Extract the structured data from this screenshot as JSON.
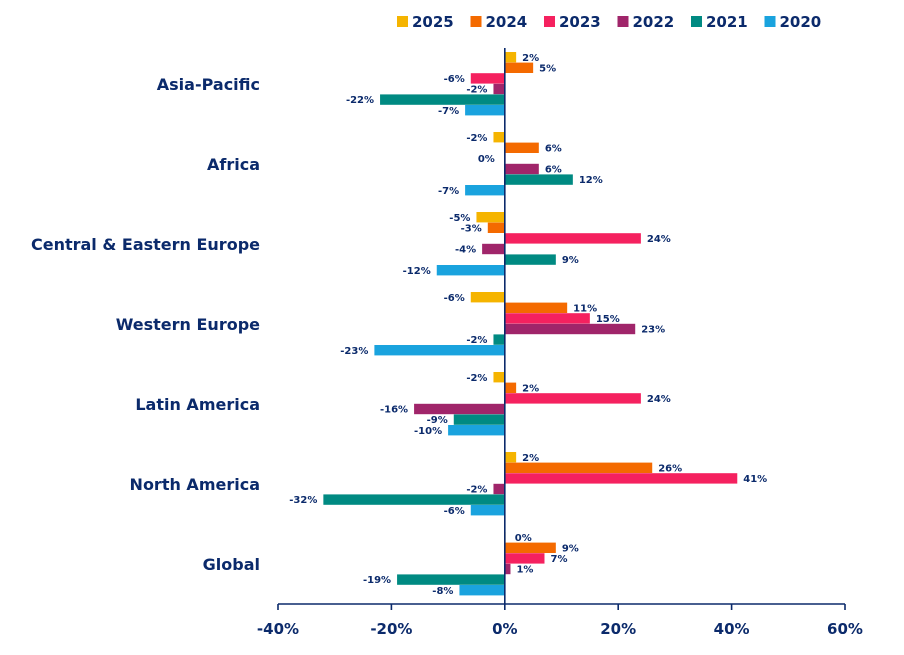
{
  "chart_data": {
    "type": "bar",
    "orientation": "horizontal",
    "title": "",
    "xlabel": "",
    "ylabel": "",
    "xlim": [
      -40,
      60
    ],
    "x_ticks": [
      -40,
      -20,
      0,
      20,
      40,
      60
    ],
    "x_tick_labels": [
      "-40%",
      "-20%",
      "0%",
      "20%",
      "40%",
      "60%"
    ],
    "grid": false,
    "legend_position": "top-right",
    "categories": [
      "Asia-Pacific",
      "Africa",
      "Central & Eastern Europe",
      "Western Europe",
      "Latin America",
      "North America",
      "Global"
    ],
    "series": [
      {
        "name": "2025",
        "color": "#f5b400",
        "values": [
          2,
          -2,
          -5,
          -6,
          -2,
          2,
          0
        ],
        "labels": [
          "2%",
          "-2%",
          "-5%",
          "-6%",
          "-2%",
          "2%",
          "0%"
        ]
      },
      {
        "name": "2024",
        "color": "#f46a00",
        "values": [
          5,
          6,
          -3,
          11,
          2,
          26,
          9
        ],
        "labels": [
          "5%",
          "6%",
          "-3%",
          "11%",
          "2%",
          "26%",
          "9%"
        ]
      },
      {
        "name": "2023",
        "color": "#f5215f",
        "values": [
          -6,
          0,
          24,
          15,
          24,
          41,
          7
        ],
        "labels": [
          "-6%",
          "0%",
          "24%",
          "15%",
          "24%",
          "41%",
          "7%"
        ]
      },
      {
        "name": "2022",
        "color": "#a0256a",
        "values": [
          -2,
          6,
          -4,
          23,
          -16,
          -2,
          1
        ],
        "labels": [
          "-2%",
          "6%",
          "-4%",
          "23%",
          "-16%",
          "-2%",
          "1%"
        ]
      },
      {
        "name": "2021",
        "color": "#008a82",
        "values": [
          -22,
          12,
          9,
          -2,
          -9,
          -32,
          -19
        ],
        "labels": [
          "-22%",
          "12%",
          "9%",
          "-2%",
          "-9%",
          "-32%",
          "-19%"
        ]
      },
      {
        "name": "2020",
        "color": "#1aa3de",
        "values": [
          -7,
          -7,
          -12,
          -23,
          -10,
          -6,
          -8
        ],
        "labels": [
          "-7%",
          "-7%",
          "-12%",
          "-23%",
          "-10%",
          "-6%",
          "-8%"
        ]
      }
    ]
  }
}
